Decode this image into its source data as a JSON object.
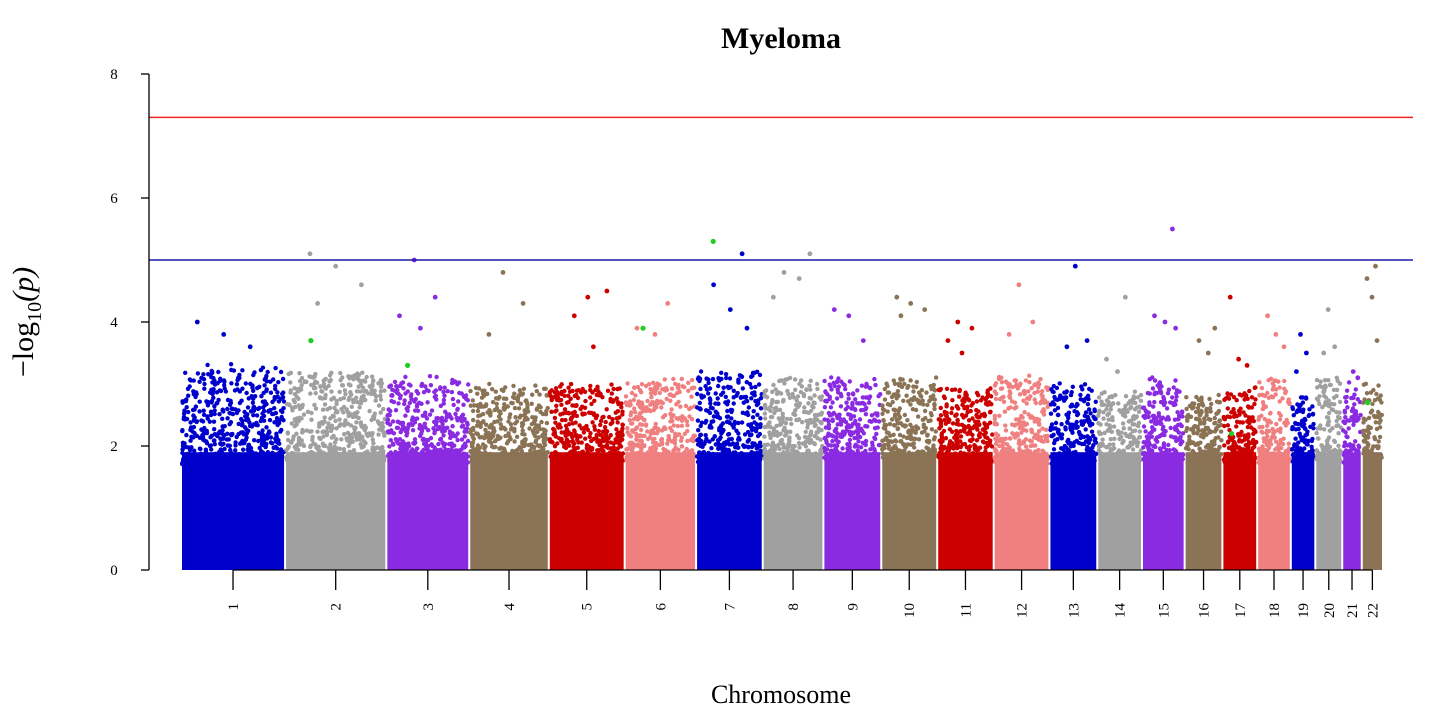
{
  "chart_data": {
    "type": "scatter",
    "title": "Myeloma",
    "xlabel": "Chromosome",
    "ylabel_base": "−log",
    "ylabel_sub": "10",
    "ylabel_arg": "(p)",
    "ylim": [
      0,
      8
    ],
    "yticks": [
      0,
      2,
      4,
      6,
      8
    ],
    "thresholds": [
      {
        "value": 7.3,
        "color": "#ee2222"
      },
      {
        "value": 5.0,
        "color": "#1a1aa8"
      }
    ],
    "highlight_color": "#22cc22",
    "chromosomes": [
      {
        "label": "1",
        "start": 0,
        "end": 248.9,
        "tick": 124.4,
        "color": "#0000cd",
        "peak": 3.2,
        "outliers": [
          4.0,
          3.8,
          3.6
        ]
      },
      {
        "label": "2",
        "start": 248.9,
        "end": 491.1,
        "tick": 370.0,
        "color": "#a0a0a0",
        "peak": 3.1,
        "outliers": [
          5.1,
          4.9,
          4.6,
          4.3
        ],
        "green": [
          3.7
        ]
      },
      {
        "label": "3",
        "start": 491.1,
        "end": 689.4,
        "tick": 590.3,
        "color": "#8a2be2",
        "peak": 3.0,
        "outliers": [
          5.0,
          4.4,
          4.1,
          3.9
        ],
        "green": [
          3.3
        ]
      },
      {
        "label": "4",
        "start": 689.4,
        "end": 879.6,
        "tick": 784.5,
        "color": "#8b7355",
        "peak": 2.9,
        "outliers": [
          4.8,
          4.3,
          3.8
        ]
      },
      {
        "label": "5",
        "start": 879.6,
        "end": 1061.1,
        "tick": 970.4,
        "color": "#cd0000",
        "peak": 2.9,
        "outliers": [
          4.4,
          4.5,
          4.1,
          3.6
        ]
      },
      {
        "label": "6",
        "start": 1061.1,
        "end": 1231.9,
        "tick": 1146.5,
        "color": "#f08080",
        "peak": 3.0,
        "outliers": [
          4.3,
          3.9,
          3.8
        ],
        "green": [
          3.9
        ]
      },
      {
        "label": "7",
        "start": 1231.9,
        "end": 1391.3,
        "tick": 1311.6,
        "color": "#0000cd",
        "peak": 3.1,
        "outliers": [
          5.1,
          4.6,
          4.2,
          3.9
        ],
        "green": [
          5.3
        ]
      },
      {
        "label": "8",
        "start": 1391.3,
        "end": 1536.4,
        "tick": 1463.9,
        "color": "#a0a0a0",
        "peak": 3.0,
        "outliers": [
          5.1,
          4.8,
          4.7,
          4.4
        ]
      },
      {
        "label": "9",
        "start": 1536.4,
        "end": 1674.8,
        "tick": 1605.6,
        "color": "#8a2be2",
        "peak": 3.0,
        "outliers": [
          4.2,
          4.1,
          3.7
        ]
      },
      {
        "label": "10",
        "start": 1674.8,
        "end": 1808.6,
        "tick": 1741.7,
        "color": "#8b7355",
        "peak": 3.0,
        "outliers": [
          4.4,
          4.3,
          4.2,
          4.1
        ]
      },
      {
        "label": "11",
        "start": 1808.6,
        "end": 1943.7,
        "tick": 1876.2,
        "color": "#cd0000",
        "peak": 2.9,
        "outliers": [
          4.0,
          3.9,
          3.7,
          3.5
        ]
      },
      {
        "label": "12",
        "start": 1943.7,
        "end": 2077.0,
        "tick": 2010.4,
        "color": "#f08080",
        "peak": 3.0,
        "outliers": [
          4.6,
          4.0,
          3.8
        ]
      },
      {
        "label": "13",
        "start": 2077.0,
        "end": 2191.4,
        "tick": 2134.2,
        "color": "#0000cd",
        "peak": 2.9,
        "outliers": [
          4.9,
          3.7,
          3.6
        ]
      },
      {
        "label": "14",
        "start": 2191.4,
        "end": 2298.4,
        "tick": 2244.9,
        "color": "#a0a0a0",
        "peak": 2.8,
        "outliers": [
          4.4,
          3.4,
          3.2
        ]
      },
      {
        "label": "15",
        "start": 2298.4,
        "end": 2400.4,
        "tick": 2349.4,
        "color": "#8a2be2",
        "peak": 3.0,
        "outliers": [
          5.5,
          4.1,
          4.0,
          3.9
        ]
      },
      {
        "label": "16",
        "start": 2400.4,
        "end": 2490.7,
        "tick": 2445.6,
        "color": "#8b7355",
        "peak": 2.8,
        "outliers": [
          3.9,
          3.7,
          3.5
        ]
      },
      {
        "label": "17",
        "start": 2490.7,
        "end": 2573.9,
        "tick": 2532.3,
        "color": "#cd0000",
        "peak": 2.8,
        "outliers": [
          4.4,
          3.4,
          3.3
        ],
        "green": [
          2.2
        ]
      },
      {
        "label": "18",
        "start": 2573.9,
        "end": 2654.3,
        "tick": 2614.1,
        "color": "#f08080",
        "peak": 3.0,
        "outliers": [
          4.1,
          3.8,
          3.6
        ]
      },
      {
        "label": "19",
        "start": 2654.3,
        "end": 2712.9,
        "tick": 2683.6,
        "color": "#0000cd",
        "peak": 2.7,
        "outliers": [
          3.8,
          3.5,
          3.2
        ]
      },
      {
        "label": "20",
        "start": 2712.9,
        "end": 2777.3,
        "tick": 2745.1,
        "color": "#a0a0a0",
        "peak": 3.0,
        "outliers": [
          4.2,
          3.6,
          3.5
        ]
      },
      {
        "label": "21",
        "start": 2777.3,
        "end": 2824.0,
        "tick": 2800.7,
        "color": "#8a2be2",
        "peak": 2.9,
        "outliers": [
          3.2,
          3.1
        ]
      },
      {
        "label": "22",
        "start": 2824.0,
        "end": 2874.8,
        "tick": 2849.4,
        "color": "#8b7355",
        "peak": 3.0,
        "outliers": [
          4.9,
          4.7,
          4.4,
          3.7
        ],
        "green": [
          2.7
        ]
      }
    ]
  }
}
